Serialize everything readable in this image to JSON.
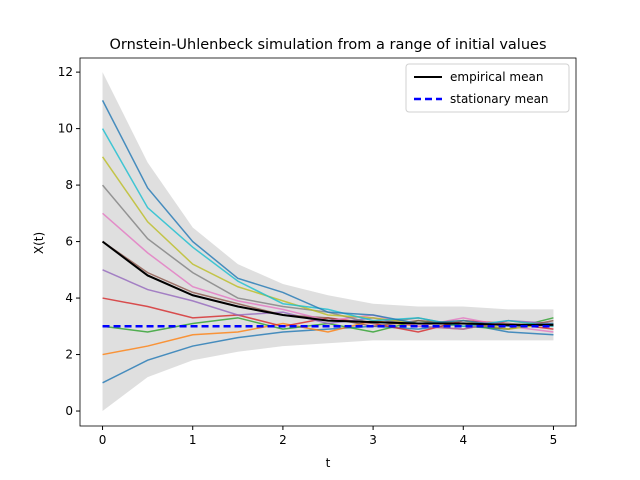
{
  "chart_data": {
    "type": "line",
    "title": "Ornstein-Uhlenbeck simulation from a range of initial values",
    "xlabel": "t",
    "ylabel": "X(t)",
    "x": [
      0,
      0.5,
      1,
      1.5,
      2,
      2.5,
      3,
      3.5,
      4,
      4.5,
      5
    ],
    "series": [
      {
        "color": "#1f77b4",
        "values": [
          1,
          1.8,
          2.3,
          2.6,
          2.8,
          2.9,
          3.0,
          2.9,
          3.1,
          2.8,
          2.7
        ]
      },
      {
        "color": "#ff7f0e",
        "values": [
          2,
          2.3,
          2.7,
          2.8,
          3.1,
          2.8,
          3.2,
          3.0,
          2.9,
          3.2,
          3.0
        ]
      },
      {
        "color": "#2ca02c",
        "values": [
          3,
          2.8,
          3.1,
          3.3,
          2.9,
          3.1,
          2.8,
          3.2,
          3.0,
          2.9,
          3.3
        ]
      },
      {
        "color": "#d62728",
        "values": [
          4,
          3.7,
          3.3,
          3.4,
          3.0,
          3.3,
          3.1,
          2.8,
          3.2,
          3.1,
          2.9
        ]
      },
      {
        "color": "#9467bd",
        "values": [
          5,
          4.3,
          3.9,
          3.4,
          3.5,
          3.1,
          3.3,
          3.0,
          2.9,
          3.2,
          3.1
        ]
      },
      {
        "color": "#8c564b",
        "values": [
          6,
          4.9,
          4.2,
          3.8,
          3.4,
          3.3,
          3.0,
          3.2,
          3.1,
          2.9,
          3.2
        ]
      },
      {
        "color": "#e377c2",
        "values": [
          7,
          5.6,
          4.4,
          3.9,
          3.6,
          3.2,
          3.4,
          3.0,
          3.3,
          3.0,
          2.8
        ]
      },
      {
        "color": "#7f7f7f",
        "values": [
          8,
          6.1,
          4.9,
          4.0,
          3.7,
          3.5,
          3.1,
          3.3,
          3.0,
          3.1,
          3.0
        ]
      },
      {
        "color": "#bcbd22",
        "values": [
          9,
          6.7,
          5.2,
          4.4,
          3.9,
          3.4,
          3.3,
          3.1,
          3.2,
          2.9,
          3.1
        ]
      },
      {
        "color": "#17becf",
        "values": [
          10,
          7.2,
          5.8,
          4.6,
          3.8,
          3.6,
          3.2,
          3.3,
          3.0,
          3.2,
          3.0
        ]
      },
      {
        "color": "#1f77b4",
        "values": [
          11,
          7.9,
          6.0,
          4.7,
          4.2,
          3.5,
          3.4,
          3.1,
          3.2,
          3.0,
          3.1
        ]
      }
    ],
    "band": {
      "color": "#d9d9d9",
      "upper": [
        12,
        8.8,
        6.5,
        5.2,
        4.5,
        4.1,
        3.8,
        3.7,
        3.7,
        3.6,
        3.6
      ],
      "lower": [
        0,
        1.2,
        1.8,
        2.1,
        2.3,
        2.4,
        2.5,
        2.5,
        2.5,
        2.5,
        2.5
      ]
    },
    "mean": {
      "name": "empirical mean",
      "color": "#000000",
      "values": [
        6,
        4.8,
        4.1,
        3.7,
        3.4,
        3.2,
        3.15,
        3.1,
        3.1,
        3.05,
        3.05
      ]
    },
    "stationary": {
      "name": "stationary mean",
      "color": "#0000ff",
      "value": 3
    },
    "xlim": [
      -0.25,
      5.25
    ],
    "ylim": [
      -0.53,
      12.5
    ],
    "xticks": [
      0,
      1,
      2,
      3,
      4,
      5
    ],
    "yticks": [
      0,
      2,
      4,
      6,
      8,
      10,
      12
    ],
    "legend": "upper right"
  }
}
